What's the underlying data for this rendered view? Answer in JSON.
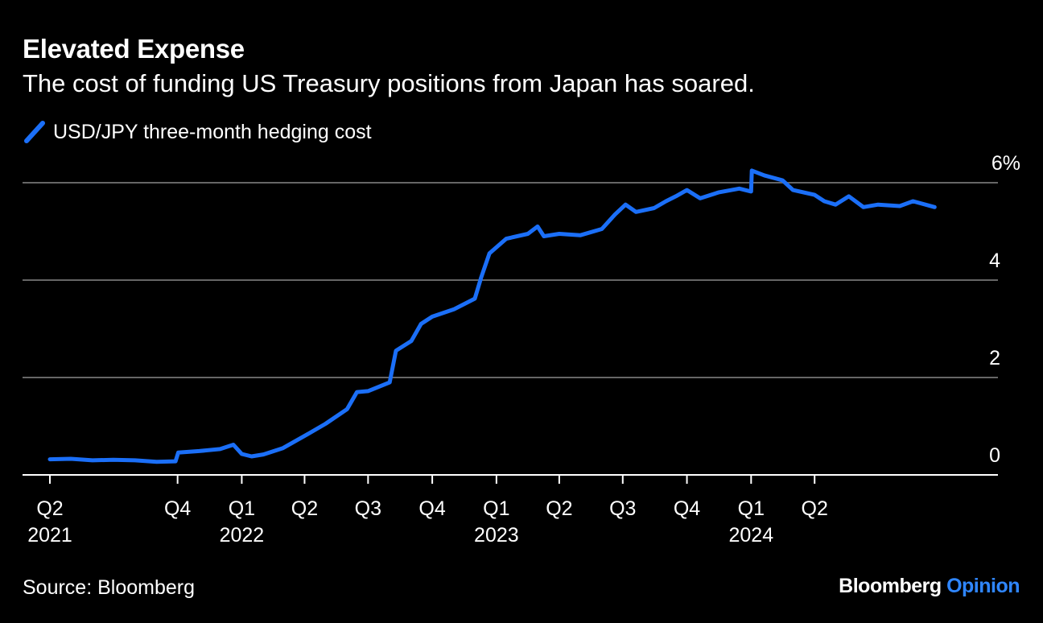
{
  "header": {
    "title": "Elevated Expense",
    "subtitle": "The cost of funding US Treasury positions from Japan has soared."
  },
  "footer": {
    "source": "Source: Bloomberg",
    "brand_main": "Bloomberg",
    "brand_accent": "Opinion"
  },
  "colors": {
    "background": "#000000",
    "line": "#1b6ff8",
    "gridline": "#666666",
    "accent": "#2f86ff"
  },
  "chart_data": {
    "type": "line",
    "title": "Elevated Expense",
    "subtitle": "The cost of funding US Treasury positions from Japan has soared.",
    "xlabel": "",
    "ylabel": "",
    "ylim": [
      0,
      6
    ],
    "xlim": [
      "2021-04-01",
      "2024-09-30"
    ],
    "grid": true,
    "legend_position": "top-left",
    "y_ticks": [
      {
        "value": 0,
        "label": "0"
      },
      {
        "value": 2,
        "label": "2"
      },
      {
        "value": 4,
        "label": "4"
      },
      {
        "value": 6,
        "label": "6%"
      }
    ],
    "x_ticks": [
      {
        "date": "2021-04-01",
        "label": "Q2",
        "year": "2021"
      },
      {
        "date": "2021-10-01",
        "label": "Q4",
        "year": ""
      },
      {
        "date": "2022-01-01",
        "label": "Q1",
        "year": "2022"
      },
      {
        "date": "2022-04-01",
        "label": "Q2",
        "year": ""
      },
      {
        "date": "2022-07-01",
        "label": "Q3",
        "year": ""
      },
      {
        "date": "2022-10-01",
        "label": "Q4",
        "year": ""
      },
      {
        "date": "2023-01-01",
        "label": "Q1",
        "year": "2023"
      },
      {
        "date": "2023-04-01",
        "label": "Q2",
        "year": ""
      },
      {
        "date": "2023-07-01",
        "label": "Q3",
        "year": ""
      },
      {
        "date": "2023-10-01",
        "label": "Q4",
        "year": ""
      },
      {
        "date": "2024-01-01",
        "label": "Q1",
        "year": "2024"
      },
      {
        "date": "2024-04-01",
        "label": "Q2",
        "year": ""
      }
    ],
    "series": [
      {
        "name": "USD/JPY three-month hedging cost",
        "points": [
          [
            "2021-04-01",
            0.32
          ],
          [
            "2021-05-01",
            0.33
          ],
          [
            "2021-06-01",
            0.3
          ],
          [
            "2021-07-01",
            0.31
          ],
          [
            "2021-08-01",
            0.3
          ],
          [
            "2021-09-01",
            0.27
          ],
          [
            "2021-09-28",
            0.28
          ],
          [
            "2021-10-02",
            0.46
          ],
          [
            "2021-11-01",
            0.49
          ],
          [
            "2021-12-01",
            0.53
          ],
          [
            "2021-12-20",
            0.62
          ],
          [
            "2022-01-01",
            0.43
          ],
          [
            "2022-01-15",
            0.38
          ],
          [
            "2022-02-01",
            0.42
          ],
          [
            "2022-03-01",
            0.55
          ],
          [
            "2022-04-01",
            0.8
          ],
          [
            "2022-05-01",
            1.05
          ],
          [
            "2022-06-01",
            1.35
          ],
          [
            "2022-06-15",
            1.7
          ],
          [
            "2022-07-01",
            1.72
          ],
          [
            "2022-08-01",
            1.9
          ],
          [
            "2022-08-10",
            2.55
          ],
          [
            "2022-09-01",
            2.75
          ],
          [
            "2022-09-15",
            3.1
          ],
          [
            "2022-10-01",
            3.25
          ],
          [
            "2022-11-01",
            3.4
          ],
          [
            "2022-12-01",
            3.62
          ],
          [
            "2022-12-10",
            4.05
          ],
          [
            "2022-12-22",
            4.55
          ],
          [
            "2023-01-15",
            4.85
          ],
          [
            "2023-02-15",
            4.95
          ],
          [
            "2023-03-01",
            5.1
          ],
          [
            "2023-03-10",
            4.9
          ],
          [
            "2023-04-01",
            4.95
          ],
          [
            "2023-05-01",
            4.92
          ],
          [
            "2023-06-01",
            5.05
          ],
          [
            "2023-06-20",
            5.35
          ],
          [
            "2023-07-05",
            5.55
          ],
          [
            "2023-07-20",
            5.4
          ],
          [
            "2023-08-15",
            5.48
          ],
          [
            "2023-09-01",
            5.62
          ],
          [
            "2023-09-15",
            5.72
          ],
          [
            "2023-10-01",
            5.85
          ],
          [
            "2023-10-20",
            5.68
          ],
          [
            "2023-11-15",
            5.8
          ],
          [
            "2023-12-15",
            5.88
          ],
          [
            "2024-01-01",
            5.82
          ],
          [
            "2024-01-02",
            6.25
          ],
          [
            "2024-01-20",
            6.15
          ],
          [
            "2024-02-15",
            6.05
          ],
          [
            "2024-03-01",
            5.85
          ],
          [
            "2024-04-01",
            5.75
          ],
          [
            "2024-04-15",
            5.62
          ],
          [
            "2024-05-01",
            5.55
          ],
          [
            "2024-05-20",
            5.72
          ],
          [
            "2024-06-10",
            5.5
          ],
          [
            "2024-07-01",
            5.55
          ],
          [
            "2024-08-01",
            5.52
          ],
          [
            "2024-08-20",
            5.62
          ],
          [
            "2024-09-20",
            5.5
          ]
        ]
      }
    ]
  }
}
